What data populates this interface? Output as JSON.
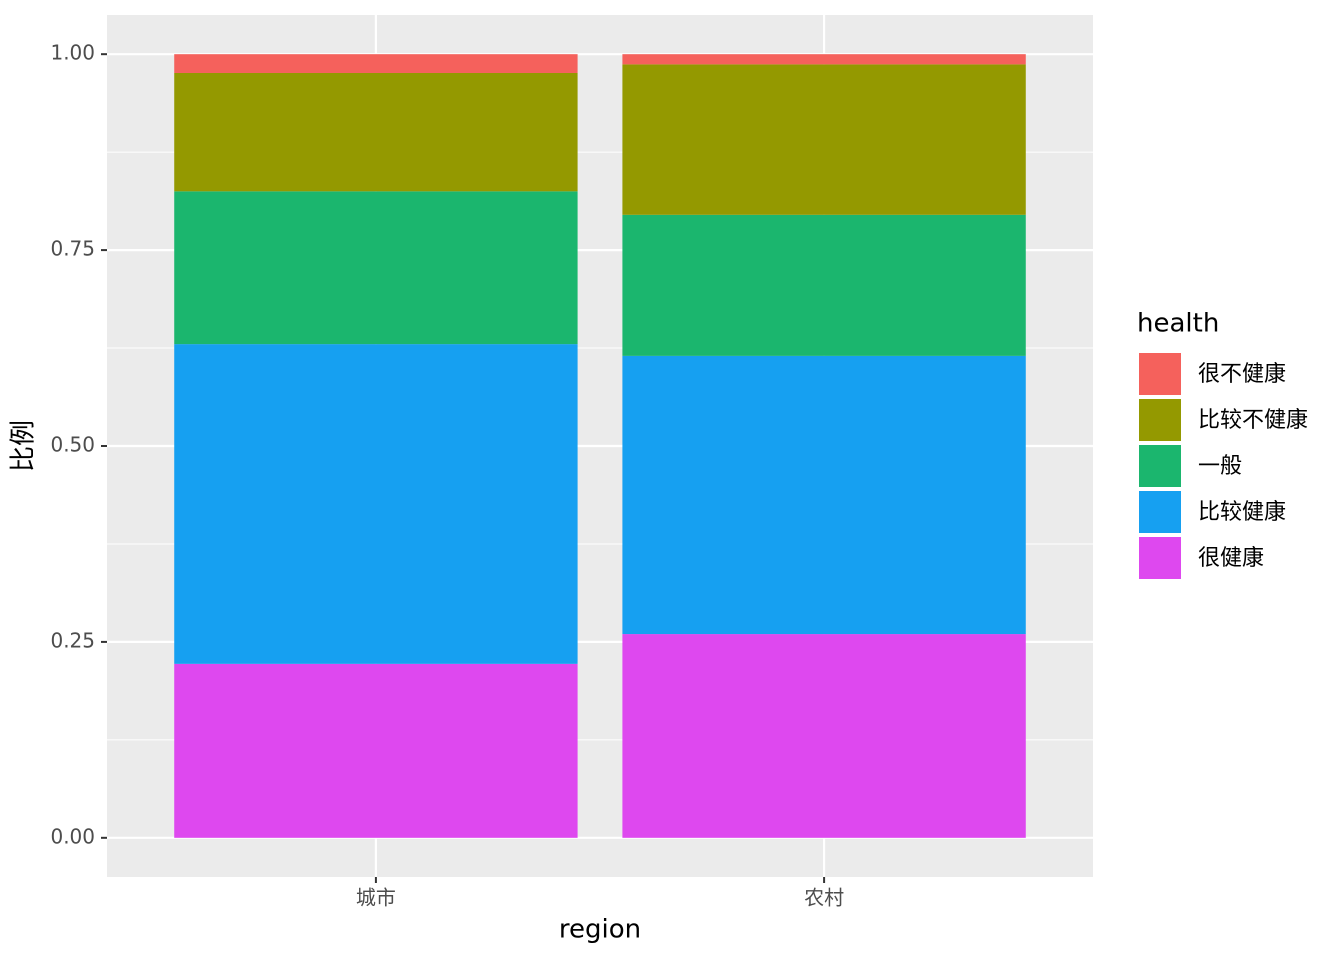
{
  "chart_data": {
    "type": "stacked_bar",
    "x_label": "region",
    "y_label": "比例",
    "legend_title": "health",
    "categories": [
      "城市",
      "农村"
    ],
    "series": [
      {
        "name": "很不健康",
        "color": "#f5615c",
        "values": [
          0.024,
          0.013
        ]
      },
      {
        "name": "比较不健康",
        "color": "#949900",
        "values": [
          0.151,
          0.192
        ]
      },
      {
        "name": "一般",
        "color": "#1bb66e",
        "values": [
          0.195,
          0.18
        ]
      },
      {
        "name": "比较健康",
        "color": "#16a0f1",
        "values": [
          0.408,
          0.355
        ]
      },
      {
        "name": "很健康",
        "color": "#de48ef",
        "values": [
          0.222,
          0.26
        ]
      }
    ],
    "ylim": [
      0,
      1
    ],
    "yticks": [
      {
        "value": 0,
        "label": "0.00"
      },
      {
        "value": 0.25,
        "label": "0.25"
      },
      {
        "value": 0.5,
        "label": "0.50"
      },
      {
        "value": 0.75,
        "label": "0.75"
      },
      {
        "value": 1,
        "label": "1.00"
      }
    ],
    "grid": true,
    "legend": "right"
  }
}
